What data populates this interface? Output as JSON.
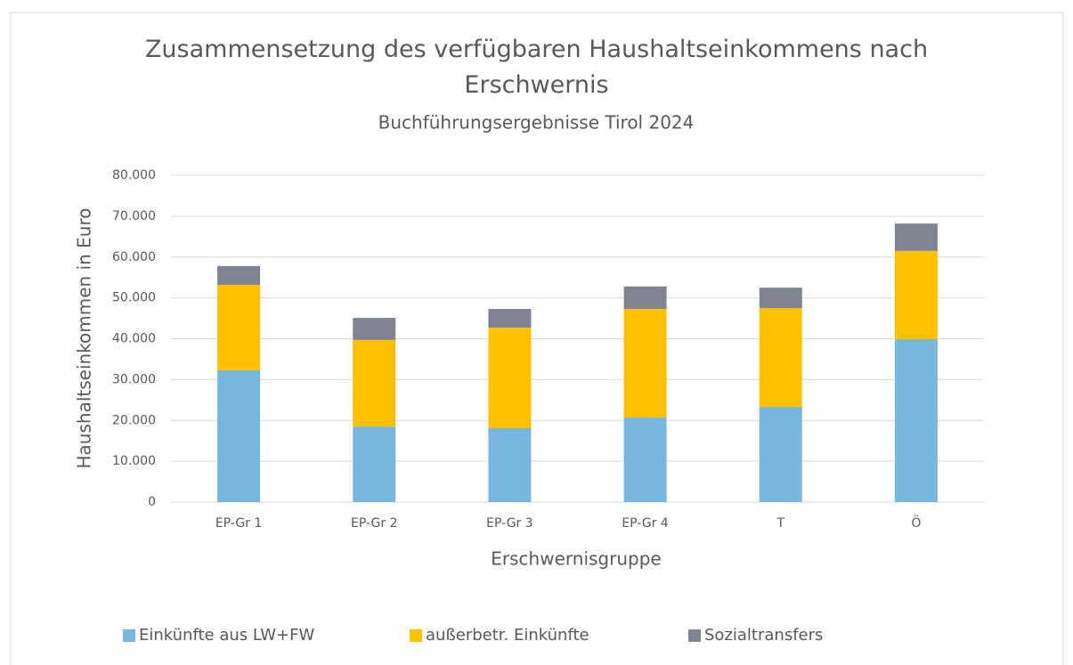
{
  "chart_data": {
    "type": "stacked_bar",
    "title": "Zusammensetzung des verfügbaren Haushaltseinkommens nach Erschwernis",
    "subtitle": "Buchführungsergebnisse Tirol 2024",
    "x_label": "Erschwernisgruppe",
    "y_label": "Haushaltseinkommen in Euro",
    "categories": [
      "EP-Gr 1",
      "EP-Gr 2",
      "EP-Gr 3",
      "EP-Gr 4",
      "T",
      "Ö"
    ],
    "series": [
      {
        "name": "Einkünfte aus LW+FW",
        "color": "#78b6e0",
        "values": [
          32300,
          18500,
          18100,
          20700,
          23300,
          39900
        ]
      },
      {
        "name": "außerbetr. Einkünfte",
        "color": "#ffc000",
        "values": [
          20900,
          21200,
          24600,
          26600,
          24200,
          21600
        ]
      },
      {
        "name": "Sozialtransfers",
        "color": "#7f8490",
        "values": [
          4600,
          5400,
          4600,
          5500,
          5000,
          6700
        ]
      }
    ],
    "ylim": [
      0,
      80000
    ],
    "yticks": [
      0,
      {
        "value": 10000,
        "label": "10.000"
      },
      {
        "value": 20000,
        "label": "20.000"
      },
      {
        "value": 30000,
        "label": "30.000"
      },
      {
        "value": 40000,
        "label": "40.000"
      },
      {
        "value": 50000,
        "label": "50.000"
      },
      {
        "value": 60000,
        "label": "60.000"
      },
      {
        "value": 70000,
        "label": "70.000"
      },
      {
        "value": 80000,
        "label": "80.000"
      }
    ],
    "grid": true,
    "legend": "bottom"
  }
}
